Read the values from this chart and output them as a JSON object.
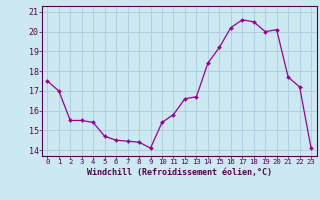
{
  "x": [
    0,
    1,
    2,
    3,
    4,
    5,
    6,
    7,
    8,
    9,
    10,
    11,
    12,
    13,
    14,
    15,
    16,
    17,
    18,
    19,
    20,
    21,
    22,
    23
  ],
  "y": [
    17.5,
    17.0,
    15.5,
    15.5,
    15.4,
    14.7,
    14.5,
    14.45,
    14.4,
    14.1,
    15.4,
    15.8,
    16.6,
    16.7,
    18.4,
    19.2,
    20.2,
    20.6,
    20.5,
    20.0,
    20.1,
    17.7,
    17.2,
    14.1
  ],
  "line_color": "#990099",
  "marker_color": "#990099",
  "bg_color": "#cce8f0",
  "grid_color": "#aaccdd",
  "xlabel": "Windchill (Refroidissement éolien,°C)",
  "xlim": [
    -0.5,
    23.5
  ],
  "ylim": [
    13.7,
    21.3
  ],
  "xticks": [
    0,
    1,
    2,
    3,
    4,
    5,
    6,
    7,
    8,
    9,
    10,
    11,
    12,
    13,
    14,
    15,
    16,
    17,
    18,
    19,
    20,
    21,
    22,
    23
  ],
  "yticks": [
    14,
    15,
    16,
    17,
    18,
    19,
    20,
    21
  ],
  "xlabel_fontsize": 6.0,
  "xtick_fontsize": 5.2,
  "ytick_fontsize": 6.0
}
